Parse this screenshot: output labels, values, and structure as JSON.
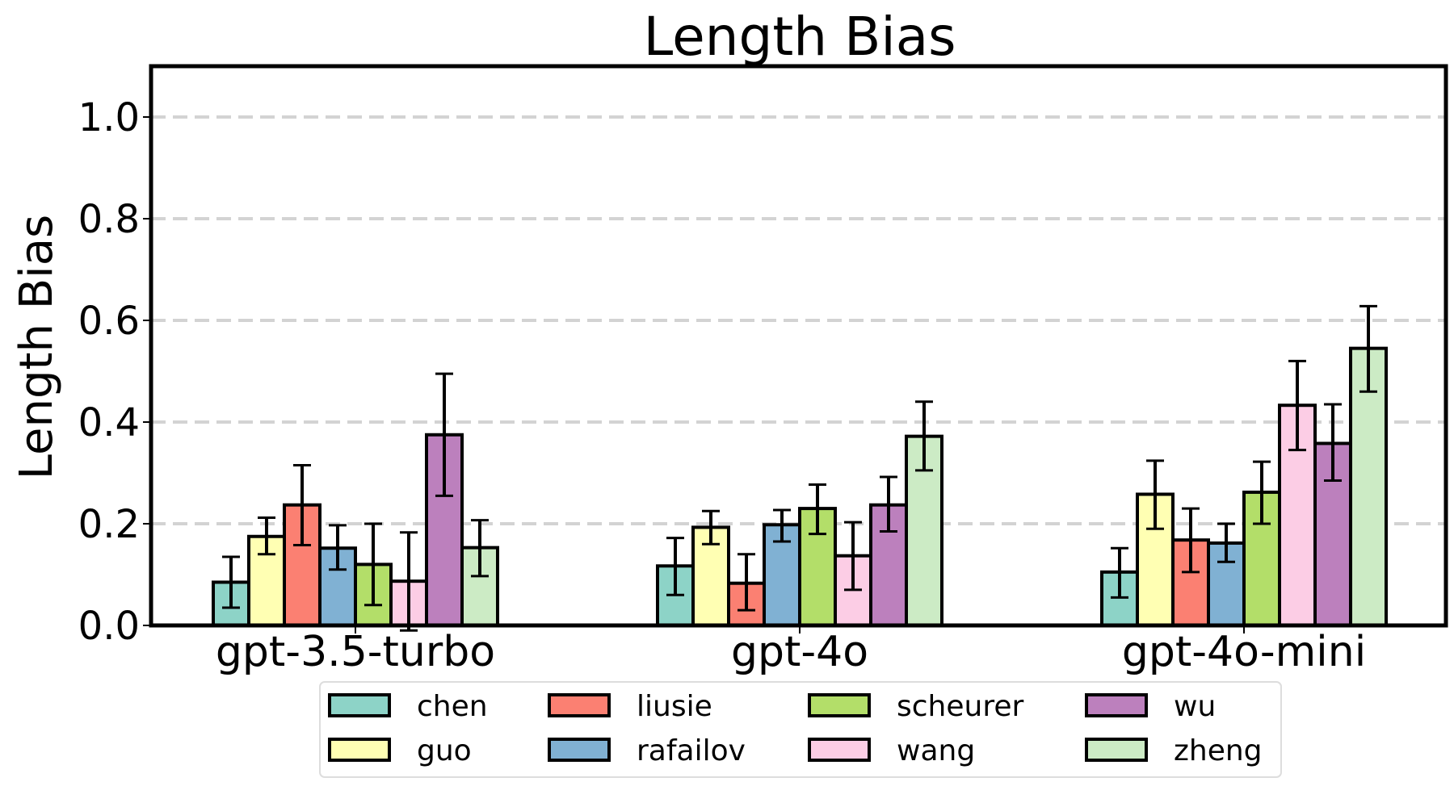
{
  "chart_data": {
    "type": "bar",
    "title": "Length Bias",
    "xlabel": "",
    "ylabel": "Length Bias",
    "ylim": [
      0,
      1.1
    ],
    "yticks": [
      "0.0",
      "0.2",
      "0.4",
      "0.6",
      "0.8",
      "1.0"
    ],
    "grid": "horizontal dashed",
    "legend_placement": "bottom-center",
    "legend_columns": 4,
    "error_bars": true,
    "categories": [
      "gpt-3.5-turbo",
      "gpt-4o",
      "gpt-4o-mini"
    ],
    "series": [
      {
        "name": "chen",
        "color": "#8dd3c7",
        "values": [
          0.085,
          0.117,
          0.105
        ],
        "errors": [
          [
            0.035,
            0.135
          ],
          [
            0.06,
            0.172
          ],
          [
            0.055,
            0.152
          ]
        ]
      },
      {
        "name": "guo",
        "color": "#ffffb3",
        "values": [
          0.175,
          0.193,
          0.258
        ],
        "errors": [
          [
            0.14,
            0.212
          ],
          [
            0.16,
            0.225
          ],
          [
            0.19,
            0.324
          ]
        ]
      },
      {
        "name": "liusie",
        "color": "#fb8072",
        "values": [
          0.237,
          0.083,
          0.168
        ],
        "errors": [
          [
            0.158,
            0.315
          ],
          [
            0.03,
            0.14
          ],
          [
            0.105,
            0.23
          ]
        ]
      },
      {
        "name": "rafailov",
        "color": "#80b1d3",
        "values": [
          0.152,
          0.198,
          0.162
        ],
        "errors": [
          [
            0.11,
            0.197
          ],
          [
            0.165,
            0.227
          ],
          [
            0.125,
            0.2
          ]
        ]
      },
      {
        "name": "scheurer",
        "color": "#b3de69",
        "values": [
          0.12,
          0.23,
          0.262
        ],
        "errors": [
          [
            0.04,
            0.2
          ],
          [
            0.18,
            0.277
          ],
          [
            0.2,
            0.322
          ]
        ]
      },
      {
        "name": "wang",
        "color": "#fccde5",
        "values": [
          0.087,
          0.137,
          0.433
        ],
        "errors": [
          [
            -0.01,
            0.183
          ],
          [
            0.07,
            0.203
          ],
          [
            0.345,
            0.52
          ]
        ]
      },
      {
        "name": "wu",
        "color": "#bc80bd",
        "values": [
          0.375,
          0.237,
          0.358
        ],
        "errors": [
          [
            0.255,
            0.495
          ],
          [
            0.185,
            0.292
          ],
          [
            0.285,
            0.435
          ]
        ]
      },
      {
        "name": "zheng",
        "color": "#ccebc5",
        "values": [
          0.153,
          0.372,
          0.545
        ],
        "errors": [
          [
            0.097,
            0.207
          ],
          [
            0.305,
            0.44
          ],
          [
            0.46,
            0.628
          ]
        ]
      }
    ]
  }
}
